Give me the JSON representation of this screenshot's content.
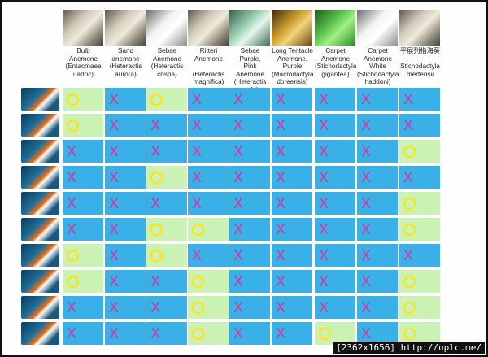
{
  "columns": [
    {
      "label": "Bulb Anemone\n(Entacmaea\nuadric)",
      "photo": "tan"
    },
    {
      "label": "Sand anemone\n(Heteractis\naurora)",
      "photo": "tan"
    },
    {
      "label": "Sebae\nAnemone\n(Heteractis\ncrispa)",
      "photo": "white"
    },
    {
      "label": "Ritteri\nAnemone\n\n(Heteractis\nmagnifica)",
      "photo": "tan"
    },
    {
      "label": "Sebae Purple,\nPink Anemone\n(Heteractis\nmalu)",
      "photo": "mint"
    },
    {
      "label": "Long Tentacle\nAnemone,\nPurple\n(Macrodactyla\ndoreensis)",
      "photo": "orange"
    },
    {
      "label": "Carpet\nAnemone\n(Stichodactyla\ngigantea)",
      "photo": "green"
    },
    {
      "label": "Carpet\nAnemone\nWhite\n(Stichodactyla\nhaddoni)",
      "photo": "white"
    },
    {
      "label": "平展列指海葵\n\nStichodactyla\nmertensii",
      "photo": "tan"
    }
  ],
  "rows": [
    [
      "O",
      "X",
      "O",
      "X",
      "X",
      "X",
      "X",
      "X",
      "X"
    ],
    [
      "O",
      "X",
      "X",
      "X",
      "X",
      "X",
      "X",
      "X",
      "X"
    ],
    [
      "X",
      "X",
      "X",
      "X",
      "X",
      "X",
      "X",
      "X",
      "O"
    ],
    [
      "X",
      "X",
      "O",
      "X",
      "X",
      "X",
      "X",
      "X",
      "X"
    ],
    [
      "X",
      "X",
      "X",
      "X",
      "X",
      "X",
      "X",
      "X",
      "O"
    ],
    [
      "X",
      "X",
      "O",
      "O",
      "X",
      "X",
      "X",
      "X",
      "O"
    ],
    [
      "O",
      "X",
      "O",
      "X",
      "X",
      "X",
      "X",
      "X",
      "X"
    ],
    [
      "O",
      "X",
      "X",
      "O",
      "X",
      "X",
      "X",
      "X",
      "O"
    ],
    [
      "X",
      "X",
      "X",
      "O",
      "X",
      "X",
      "X",
      "X",
      "O"
    ],
    [
      "X",
      "X",
      "X",
      "O",
      "X",
      "X",
      "O",
      "X",
      "O"
    ]
  ],
  "marks": {
    "no": "X",
    "yes": ""
  },
  "footer": "[2362x1656] http://uplc.me/",
  "colors": {
    "no_bg": "#3ab0e8",
    "yes_bg": "#c9f2b4",
    "x_color": "#d6359a",
    "o_color": "#ffe11a"
  }
}
